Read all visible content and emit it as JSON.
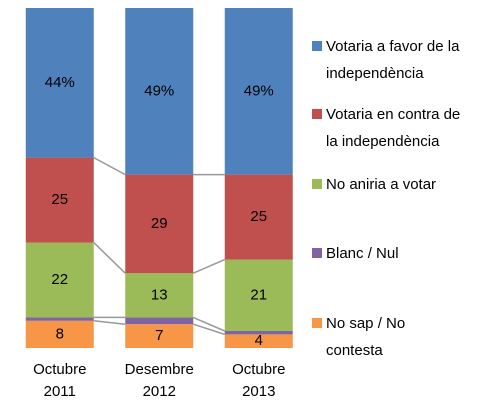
{
  "chart_data": {
    "type": "stacked_bar",
    "categories": [
      "Octubre 2011",
      "Desembre 2012",
      "Octubre 2013"
    ],
    "ylim": [
      0,
      100
    ],
    "series": [
      {
        "name": "Votaria a favor de la independència",
        "color": "#4f81bd",
        "values": [
          44,
          49,
          49
        ],
        "value_labels": [
          "44%",
          "49%",
          "49%"
        ]
      },
      {
        "name": "Votaria en contra de la independència",
        "color": "#c0504d",
        "values": [
          25,
          29,
          25
        ]
      },
      {
        "name": "No aniria a votar",
        "color": "#9bbb59",
        "values": [
          22,
          13,
          21
        ]
      },
      {
        "name": "Blanc / Nul",
        "color": "#8064a2",
        "values": [
          1,
          2,
          1
        ]
      },
      {
        "name": "No sap / No contesta",
        "color": "#f79646",
        "values": [
          8,
          7,
          4
        ]
      }
    ]
  }
}
